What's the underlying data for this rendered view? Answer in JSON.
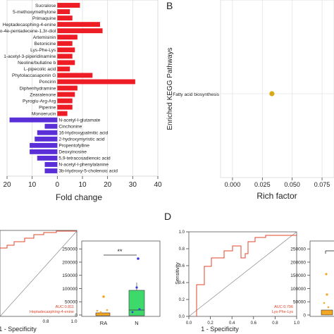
{
  "panel_labels": {
    "b": "B",
    "d": "D"
  },
  "chart_data": [
    {
      "id": "A",
      "type": "bar",
      "orientation": "horizontal",
      "xlabel": "Fold change",
      "xtick_labels": [
        "20",
        "10",
        "0",
        "10",
        "20",
        "30",
        "40"
      ],
      "xlim": [
        -20,
        40
      ],
      "grid": true,
      "colors": {
        "up": "#ee1c25",
        "down": "#5a2fd8"
      },
      "categories": [
        "Sucralose",
        "5-methoxymethylone",
        "Primaquine",
        "Heptadecasphing-4-enine",
        "mino-4e-pentadecene-1,3r-diol",
        "Artemisinin",
        "Betonicine",
        "Lys-Phe-Lys",
        "1-acetyl-3-piperidinamine",
        "Neoline/bullatine b",
        "L-pipecolic acid",
        "Phytolaccasaponin G",
        "Poncirin",
        "Diphenhydramine",
        "Zearalenone",
        "Pyroglu-Arg-Arg",
        "Piperine",
        "Monoerucin",
        "N-acetyl-l-glutamate",
        "Cinchonine",
        "16-Hydroxypalmitic acid",
        "2-hydroxymyristic acid",
        "Propentofylline",
        "Deoxyinosine",
        "5,9-tetracosadienoic acid",
        "N-acetyl-l-phenylalanine",
        "3b-Hydroxy-5-cholenoic acid"
      ],
      "values": [
        9,
        5,
        6,
        17,
        18,
        8,
        6,
        7,
        6,
        7,
        5,
        14,
        31,
        8,
        7,
        6,
        6,
        4,
        -19,
        -5,
        -8,
        -9,
        -11,
        -11,
        -8,
        -5,
        -5
      ]
    },
    {
      "id": "B",
      "type": "scatter",
      "ylabel": "Enriched KEGG Pathways",
      "xlabel": "Rich factor",
      "xtick_labels": [
        "0.000",
        "0.025",
        "0.050",
        "0.075"
      ],
      "xlim": [
        -0.01,
        0.085
      ],
      "categories": [
        "Fatty acid biosynthesis"
      ],
      "points": [
        {
          "pathway": "Fatty acid biosynthesis",
          "x": 0.033
        }
      ],
      "point_color": "#d9a814"
    },
    {
      "id": "C_roc",
      "type": "line",
      "xlabel": "1 - Specificity",
      "xtick_labels": [
        "0.8",
        "1.0"
      ],
      "legend": [
        "AUC:0.811",
        "Heptadecasphing-4-enine"
      ],
      "line_color": "#e0452b"
    },
    {
      "id": "C_box",
      "type": "box",
      "categories": [
        "RA",
        "N"
      ],
      "ytick_labels": [
        "0",
        "50000",
        "100000",
        "150000",
        "200000",
        "250000"
      ],
      "ylim": [
        0,
        280000
      ],
      "significance": "**",
      "box_colors": [
        "#f5a623",
        "#3ed96b"
      ]
    },
    {
      "id": "D_roc",
      "type": "line",
      "ylabel": "Sensitivity",
      "xlabel": "1 - Specificity",
      "xtick_labels": [
        "0.0",
        "0.2",
        "0.4",
        "0.6",
        "0.8",
        "1.0"
      ],
      "ytick_labels": [
        "0.0",
        "0.2",
        "0.4",
        "0.6",
        "0.8",
        "1.0"
      ],
      "legend": [
        "AUC:0.796",
        "Lys-Phe-Lys"
      ],
      "line_color": "#e0452b"
    },
    {
      "id": "D_box",
      "type": "box",
      "ytick_labels": [
        "0",
        "50000",
        "100000",
        "150000",
        "200000",
        "250000"
      ],
      "ylim": [
        0,
        280000
      ],
      "box_colors": [
        "#f5a623"
      ]
    }
  ]
}
